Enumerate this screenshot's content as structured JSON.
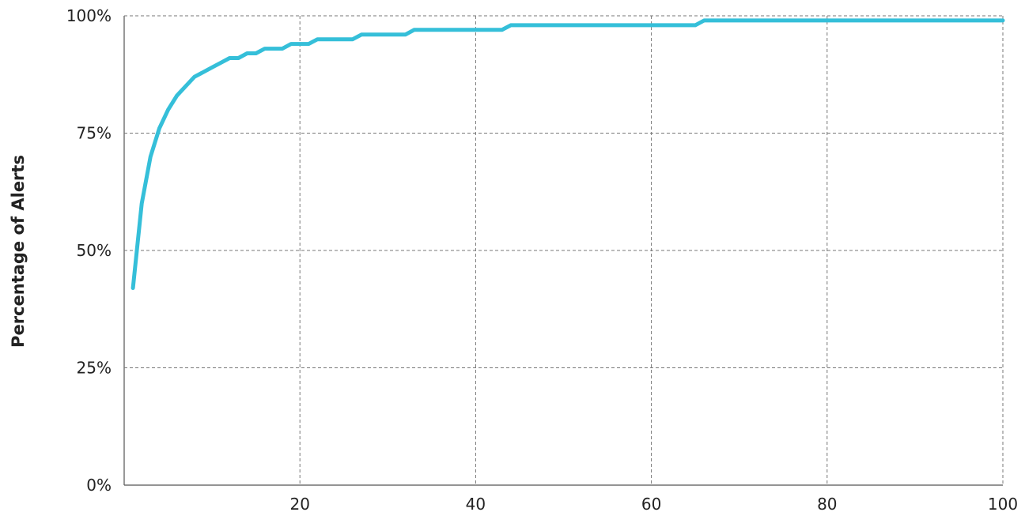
{
  "chart_data": {
    "type": "line",
    "title": "",
    "xlabel": "",
    "ylabel": "Percentage of Alerts",
    "xlim": [
      0,
      100
    ],
    "ylim": [
      0,
      100
    ],
    "x_ticks": [
      20,
      40,
      60,
      80,
      100
    ],
    "x_tick_labels": [
      "20",
      "40",
      "60",
      "80",
      "100"
    ],
    "y_ticks": [
      0,
      25,
      50,
      75,
      100
    ],
    "y_tick_labels": [
      "0%",
      "25%",
      "50%",
      "75%",
      "100%"
    ],
    "grid": true,
    "legend": "none",
    "series": [
      {
        "color": "#35bfd9",
        "x": [
          1,
          2,
          3,
          4,
          5,
          6,
          7,
          8,
          9,
          10,
          11,
          12,
          13,
          14,
          15,
          16,
          17,
          18,
          19,
          20,
          21,
          22,
          25,
          26,
          27,
          31,
          32,
          33,
          42,
          43,
          44,
          64,
          65,
          66,
          100
        ],
        "y": [
          42,
          60,
          70,
          76,
          80,
          83,
          85,
          87,
          88,
          89,
          90,
          91,
          91,
          92,
          92,
          93,
          93,
          93,
          94,
          94,
          94,
          95,
          95,
          95,
          96,
          96,
          96,
          97,
          97,
          97,
          98,
          98,
          98,
          99,
          99
        ]
      }
    ]
  }
}
